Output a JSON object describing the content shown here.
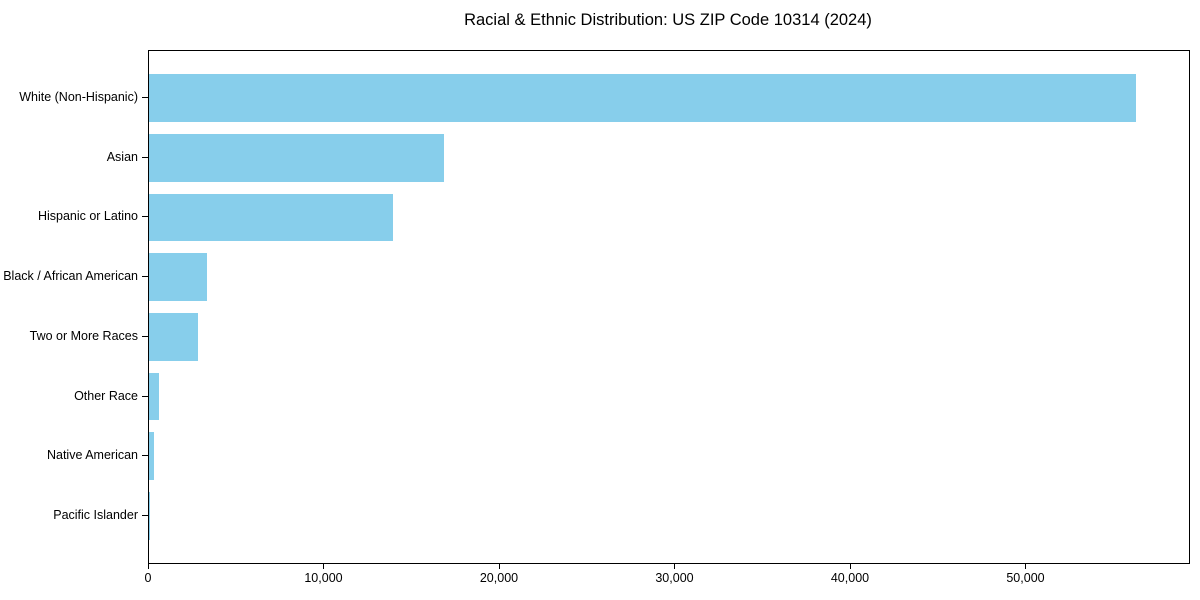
{
  "chart_data": {
    "type": "bar",
    "orientation": "horizontal",
    "title": "Racial & Ethnic Distribution: US ZIP Code 10314 (2024)",
    "categories": [
      "White (Non-Hispanic)",
      "Asian",
      "Hispanic or Latino",
      "Black / African American",
      "Two or More Races",
      "Other Race",
      "Native American",
      "Pacific Islander"
    ],
    "values": [
      56240,
      16810,
      13900,
      3310,
      2790,
      570,
      280,
      20
    ],
    "xlabel": "",
    "ylabel": "",
    "xlim": [
      0,
      59260
    ],
    "xticks": [
      0,
      10000,
      20000,
      30000,
      40000,
      50000
    ],
    "xtick_labels": [
      "0",
      "10,000",
      "20,000",
      "30,000",
      "40,000",
      "50,000"
    ],
    "bar_color": "#87CEEB",
    "background_color": "#ffffff",
    "text_color": "#000000",
    "grid": false,
    "legend": "none"
  }
}
